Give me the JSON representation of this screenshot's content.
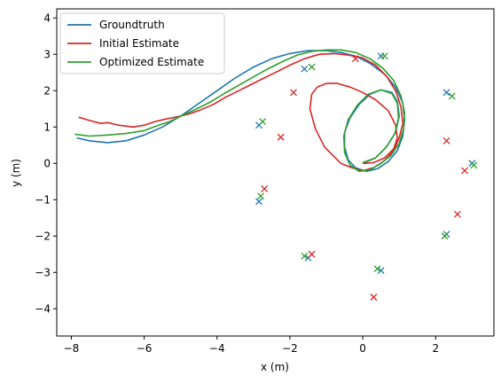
{
  "chart_data": {
    "type": "line",
    "title": "",
    "xlabel": "x (m)",
    "ylabel": "y (m)",
    "xlim": [
      -8.4,
      3.6
    ],
    "ylim": [
      -4.75,
      4.25
    ],
    "xticks": [
      -8,
      -6,
      -4,
      -2,
      0,
      2
    ],
    "yticks": [
      -4,
      -3,
      -2,
      -1,
      0,
      1,
      2,
      3,
      4
    ],
    "tick_labels_x": [
      "−8",
      "−6",
      "−4",
      "−2",
      "0",
      "2"
    ],
    "tick_labels_y": [
      "−4",
      "−3",
      "−2",
      "−1",
      "0",
      "1",
      "2",
      "3",
      "4"
    ],
    "grid": false,
    "legend_position": "top-left",
    "series": [
      {
        "name": "Groundtruth",
        "color": "#1f77b4",
        "x": [
          -7.85,
          -7.5,
          -7.0,
          -6.5,
          -6.0,
          -5.5,
          -5.0,
          -4.5,
          -4.0,
          -3.5,
          -3.0,
          -2.5,
          -2.0,
          -1.5,
          -1.0,
          -0.6,
          -0.2,
          0.2,
          0.6,
          0.9,
          1.1,
          1.15,
          1.1,
          0.95,
          0.7,
          0.4,
          0.1,
          -0.2,
          -0.4,
          -0.5,
          -0.5,
          -0.35,
          -0.1,
          0.2,
          0.5,
          0.8,
          0.95,
          1.0,
          0.9,
          0.65,
          0.35,
          0.0
        ],
        "y": [
          0.7,
          0.62,
          0.57,
          0.62,
          0.78,
          1.0,
          1.3,
          1.65,
          2.0,
          2.35,
          2.65,
          2.88,
          3.02,
          3.1,
          3.1,
          3.05,
          2.95,
          2.75,
          2.45,
          2.1,
          1.65,
          1.2,
          0.75,
          0.35,
          0.05,
          -0.15,
          -0.22,
          -0.12,
          0.1,
          0.45,
          0.85,
          1.25,
          1.62,
          1.9,
          2.02,
          1.95,
          1.7,
          1.3,
          0.85,
          0.45,
          0.15,
          0.0
        ]
      },
      {
        "name": "Initial Estimate",
        "color": "#d62728",
        "x": [
          -7.8,
          -7.5,
          -7.2,
          -7.0,
          -6.7,
          -6.3,
          -6.0,
          -5.7,
          -5.4,
          -5.1,
          -4.8,
          -4.5,
          -4.1,
          -3.8,
          -3.5,
          -3.1,
          -2.8,
          -2.4,
          -2.0,
          -1.6,
          -1.2,
          -0.8,
          -0.4,
          0.0,
          0.35,
          0.65,
          0.9,
          1.05,
          1.1,
          1.0,
          0.85,
          0.6,
          0.3,
          0.0,
          -0.3,
          -0.6,
          -1.05,
          -1.3,
          -1.45,
          -1.4,
          -1.25,
          -1.0,
          -0.7,
          -0.35,
          0.0,
          0.35,
          0.7,
          0.9,
          0.95,
          0.85,
          0.6,
          0.3,
          0.0
        ],
        "y": [
          1.27,
          1.18,
          1.1,
          1.12,
          1.05,
          1.0,
          1.05,
          1.15,
          1.22,
          1.28,
          1.35,
          1.45,
          1.62,
          1.8,
          1.95,
          2.15,
          2.3,
          2.5,
          2.7,
          2.88,
          3.0,
          3.02,
          2.98,
          2.9,
          2.7,
          2.4,
          2.0,
          1.55,
          1.1,
          0.7,
          0.35,
          0.08,
          -0.12,
          -0.2,
          -0.12,
          0.0,
          0.45,
          0.95,
          1.5,
          1.9,
          2.1,
          2.2,
          2.2,
          2.1,
          1.95,
          1.75,
          1.45,
          1.05,
          0.7,
          0.4,
          0.15,
          0.02,
          0.0
        ]
      },
      {
        "name": "Optimized Estimate",
        "color": "#2ca02c",
        "x": [
          -7.9,
          -7.5,
          -7.0,
          -6.5,
          -6.0,
          -5.6,
          -5.3,
          -5.0,
          -4.6,
          -4.2,
          -3.8,
          -3.4,
          -3.0,
          -2.6,
          -2.2,
          -1.8,
          -1.4,
          -1.0,
          -0.6,
          -0.2,
          0.2,
          0.55,
          0.85,
          1.05,
          1.15,
          1.12,
          1.0,
          0.78,
          0.5,
          0.2,
          -0.1,
          -0.35,
          -0.5,
          -0.52,
          -0.4,
          -0.15,
          0.15,
          0.5,
          0.8,
          0.95,
          0.98,
          0.88,
          0.65,
          0.35,
          0.0
        ],
        "y": [
          0.8,
          0.75,
          0.78,
          0.82,
          0.9,
          1.05,
          1.15,
          1.3,
          1.48,
          1.68,
          1.92,
          2.15,
          2.38,
          2.6,
          2.8,
          2.98,
          3.08,
          3.12,
          3.12,
          3.05,
          2.88,
          2.62,
          2.28,
          1.85,
          1.4,
          0.95,
          0.55,
          0.22,
          0.0,
          -0.18,
          -0.22,
          -0.05,
          0.3,
          0.75,
          1.2,
          1.6,
          1.9,
          2.02,
          1.92,
          1.65,
          1.25,
          0.82,
          0.45,
          0.15,
          0.02
        ]
      }
    ],
    "landmarks": [
      {
        "name": "Groundtruth",
        "color": "#1f77b4",
        "x": [
          -1.6,
          0.5,
          2.3,
          3.0,
          2.3,
          0.5,
          -1.5,
          -2.85,
          -2.85
        ],
        "y": [
          2.6,
          2.95,
          1.95,
          0.0,
          -1.95,
          -2.95,
          -2.6,
          1.05,
          -1.05
        ]
      },
      {
        "name": "Initial Estimate",
        "color": "#d62728",
        "x": [
          -0.2,
          -1.9,
          2.3,
          2.8,
          2.6,
          0.3,
          -1.4,
          -2.25,
          -2.7
        ],
        "y": [
          2.88,
          1.95,
          0.62,
          -0.2,
          -1.4,
          -3.68,
          -2.5,
          0.72,
          -0.7
        ]
      },
      {
        "name": "Optimized Estimate",
        "color": "#2ca02c",
        "x": [
          -1.4,
          0.6,
          2.45,
          3.05,
          2.25,
          0.4,
          -1.6,
          -2.75,
          -2.8
        ],
        "y": [
          2.65,
          2.95,
          1.85,
          -0.05,
          -2.0,
          -2.9,
          -2.55,
          1.15,
          -0.9
        ]
      }
    ]
  }
}
